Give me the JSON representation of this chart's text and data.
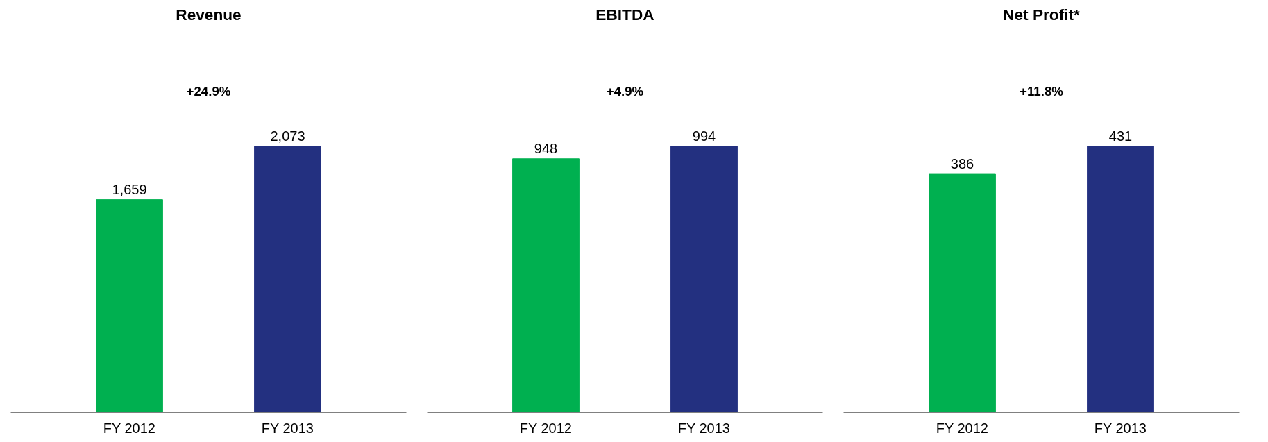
{
  "chart_data": [
    {
      "type": "bar",
      "title": "Revenue",
      "categories": [
        "FY 2012",
        "FY 2013"
      ],
      "colors": [
        "#00b050",
        "#233080"
      ],
      "values": [
        1659,
        2073
      ],
      "value_labels": [
        "1,659",
        "2,073"
      ],
      "annotations": [
        "+24.9%"
      ],
      "grid": false
    },
    {
      "type": "bar",
      "title": "EBITDA",
      "categories": [
        "FY 2012",
        "FY 2013"
      ],
      "colors": [
        "#00b050",
        "#233080"
      ],
      "values": [
        948,
        994
      ],
      "value_labels": [
        "948",
        "994"
      ],
      "annotations": [
        "+4.9%"
      ],
      "grid": false
    },
    {
      "type": "bar",
      "title": "Net Profit*",
      "categories": [
        "FY 2012",
        "FY 2013"
      ],
      "colors": [
        "#00b050",
        "#233080"
      ],
      "values": [
        386,
        431
      ],
      "value_labels": [
        "386",
        "431"
      ],
      "annotations": [
        "+11.8%"
      ],
      "grid": false
    }
  ]
}
